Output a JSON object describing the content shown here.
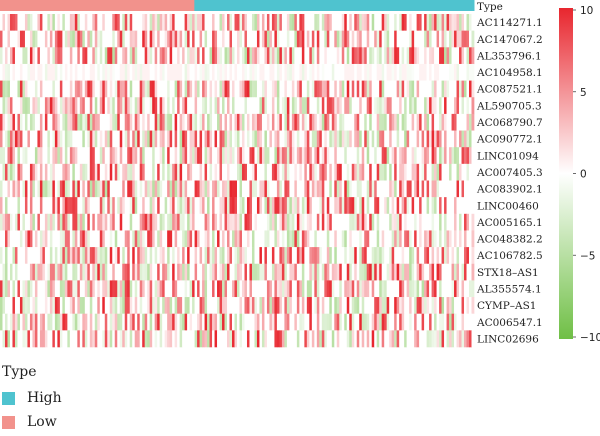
{
  "chart_data": {
    "type": "heatmap",
    "annotation": {
      "label": "Type",
      "groups": [
        {
          "name": "Low",
          "fraction": 0.41,
          "color": "#f2928c"
        },
        {
          "name": "High",
          "fraction": 0.59,
          "color": "#4fc3cf"
        }
      ]
    },
    "rows": [
      "AC114271.1",
      "AC147067.2",
      "AL353796.1",
      "AC104958.1",
      "AC087521.1",
      "AL590705.3",
      "AC068790.7",
      "AC090772.1",
      "LINC01094",
      "AC007405.3",
      "AC083902.1",
      "LINC00460",
      "AC005165.1",
      "AC048382.2",
      "AC106782.5",
      "STX18–AS1",
      "AL355574.1",
      "CYMP–AS1",
      "AC006547.1",
      "LINC02696"
    ],
    "color_scale": {
      "min": -10,
      "max": 10,
      "ticks": [
        "10",
        "5",
        "0",
        "−5",
        "−10"
      ],
      "low_color": "#6fbf45",
      "mid_color": "#ffffff",
      "high_color": "#e8262e"
    }
  },
  "legend": {
    "title": "Type",
    "items": [
      {
        "label": "High",
        "color": "#4fc3cf"
      },
      {
        "label": "Low",
        "color": "#f2928c"
      }
    ]
  }
}
